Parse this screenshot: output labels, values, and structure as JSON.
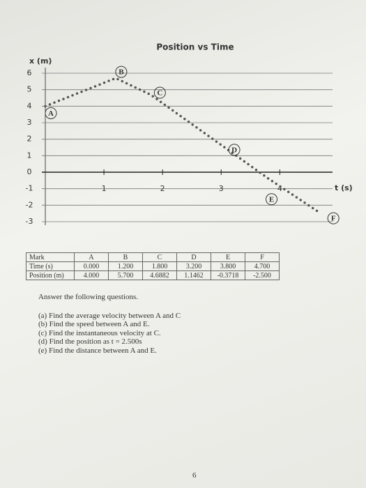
{
  "chart_data": {
    "type": "line",
    "title": "Position vs Time",
    "x_label": "t (s)",
    "y_label": "x (m)",
    "x": [
      0,
      1.2,
      1.8,
      3.2,
      3.8,
      4.7
    ],
    "values": [
      4.0,
      5.7,
      4.6882,
      1.1462,
      -0.3718,
      -2.5
    ],
    "point_labels": [
      "A",
      "B",
      "C",
      "D",
      "E",
      "F"
    ],
    "color": "#555",
    "xlim": [
      0,
      4.9
    ],
    "xticks": [
      1,
      2,
      3,
      4
    ],
    "ylim": [
      -3,
      6
    ],
    "yticks": [
      -3,
      -2,
      -1,
      0,
      1,
      2,
      3,
      4,
      5,
      6
    ],
    "grid": true
  },
  "table": {
    "header": [
      "Mark",
      "A",
      "B",
      "C",
      "D",
      "E",
      "F"
    ],
    "rows": [
      [
        "Time (s)",
        "0.000",
        "1.200",
        "1.800",
        "3.200",
        "3.800",
        "4.700"
      ],
      [
        "Position (m)",
        "4.000",
        "5.700",
        "4.6882",
        "1.1462",
        "-0.3718",
        "-2.500"
      ]
    ]
  },
  "instructions": "Answer the following questions.",
  "questions": [
    "(a) Find the average velocity between A and C",
    "(b) Find the speed between A and E.",
    "(c) Find the instantaneous velocity at C.",
    "(d) Find the position as t = 2.500s",
    "(e) Find the distance between A and E."
  ],
  "page_number": "6"
}
